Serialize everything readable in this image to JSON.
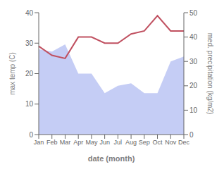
{
  "chart_data": {
    "type": "line",
    "categories": [
      "Jan",
      "Feb",
      "Mar",
      "Apr",
      "May",
      "Jun",
      "Jul",
      "Aug",
      "Sep",
      "Oct",
      "Nov",
      "Dec"
    ],
    "series": [
      {
        "type": "area",
        "axis": "y2",
        "color": "#c5cdf5",
        "values": [
          35,
          34,
          37,
          25,
          25,
          17,
          20,
          21,
          17,
          17,
          30,
          32
        ]
      },
      {
        "type": "line",
        "color": "#c05060",
        "values": [
          29,
          26,
          25,
          32,
          32,
          30,
          30,
          33,
          34,
          39,
          34,
          34
        ]
      }
    ],
    "xlabel": "date (month)",
    "ylabel": "max temp (C)",
    "y2label": "med. precipitation (kg/m2)",
    "ylim": [
      0,
      40
    ],
    "yticks": [
      0,
      10,
      20,
      30,
      40
    ],
    "y2lim": [
      0,
      50
    ],
    "y2ticks": [
      0,
      10,
      20,
      30,
      40,
      50
    ],
    "grid": false
  }
}
